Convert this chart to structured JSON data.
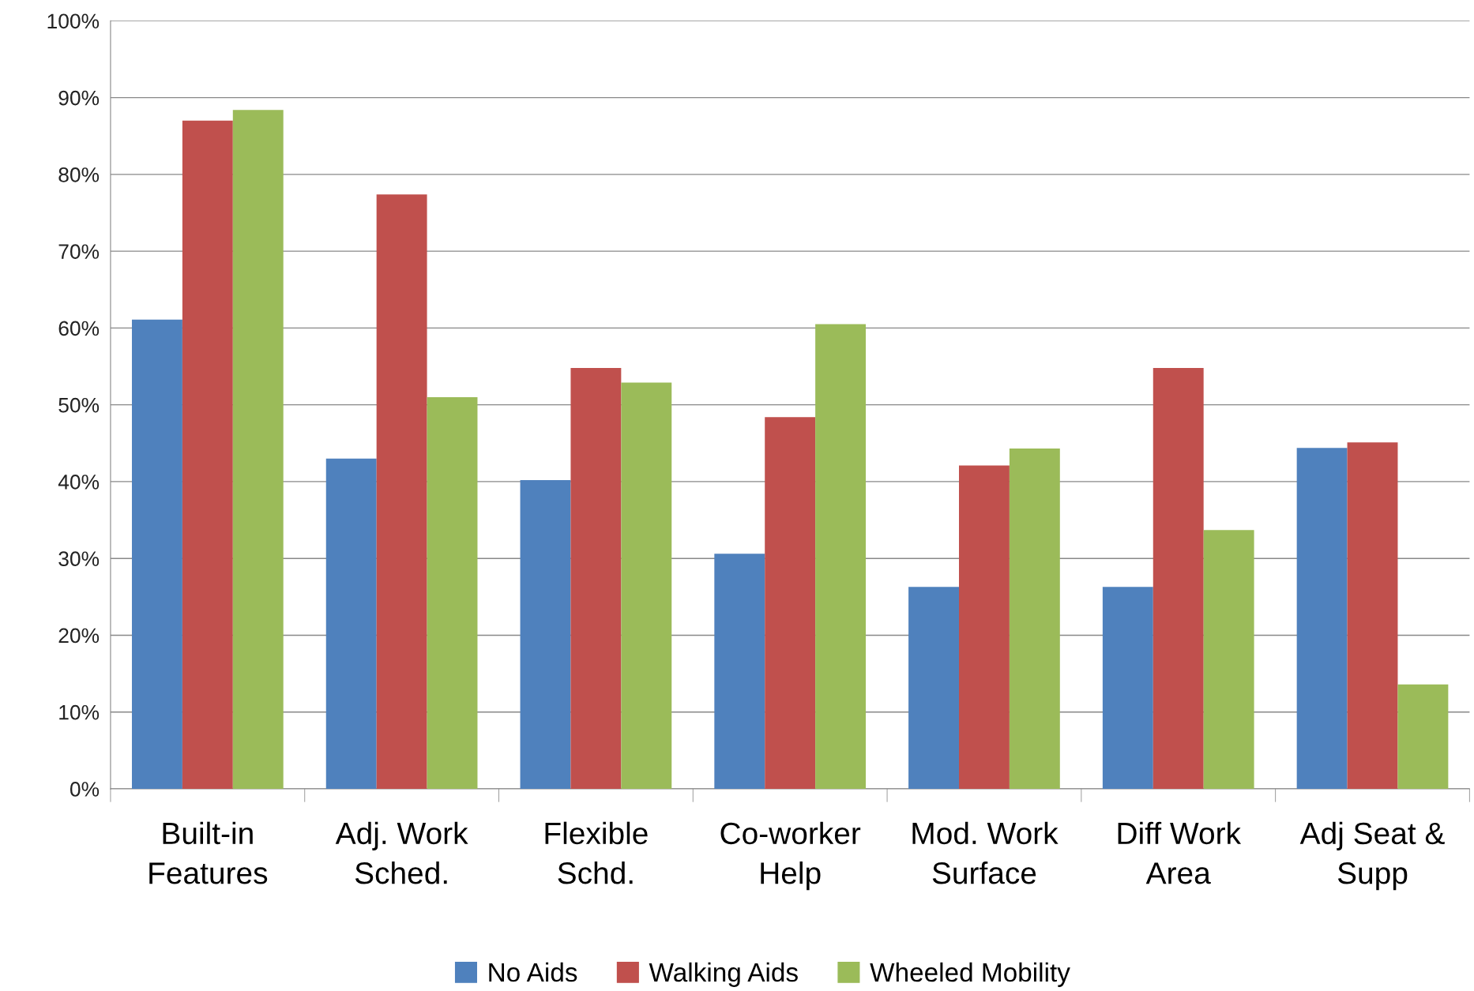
{
  "chart_data": {
    "type": "bar",
    "categories": [
      "Built-in\nFeatures",
      "Adj. Work\nSched.",
      "Flexible\nSchd.",
      "Co-worker\nHelp",
      "Mod. Work\nSurface",
      "Diff Work\nArea",
      "Adj Seat &\nSupp"
    ],
    "series": [
      {
        "name": "No Aids",
        "color": "#4f81bd",
        "values": [
          61.1,
          43.0,
          40.2,
          30.6,
          26.3,
          26.3,
          44.4
        ]
      },
      {
        "name": "Walking Aids",
        "color": "#c0504d",
        "values": [
          87.0,
          77.4,
          54.8,
          48.4,
          42.1,
          54.8,
          45.1
        ]
      },
      {
        "name": "Wheeled Mobility",
        "color": "#9bbb59",
        "values": [
          88.4,
          51.0,
          52.9,
          60.5,
          44.3,
          33.7,
          13.6
        ]
      }
    ],
    "ylim": [
      0,
      100
    ],
    "yticks": [
      {
        "value": 0,
        "label": "0%"
      },
      {
        "value": 10,
        "label": "10%"
      },
      {
        "value": 20,
        "label": "20%"
      },
      {
        "value": 30,
        "label": "30%"
      },
      {
        "value": 40,
        "label": "40%"
      },
      {
        "value": 50,
        "label": "50%"
      },
      {
        "value": 60,
        "label": "60%"
      },
      {
        "value": 70,
        "label": "70%"
      },
      {
        "value": 80,
        "label": "80%"
      },
      {
        "value": 90,
        "label": "90%"
      },
      {
        "value": 100,
        "label": "100%"
      }
    ],
    "grid": "y",
    "legend": "bottom"
  }
}
